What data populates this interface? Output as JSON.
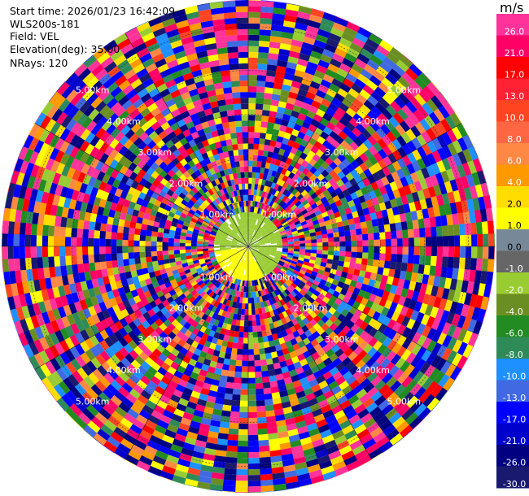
{
  "info": {
    "start_time": "Start time: 2026/01/23 16:42:09",
    "instrument": "WLS200s-181",
    "field": "Field: VEL",
    "elevation": "Elevation(deg): 35.00",
    "nrays": "NRays: 120"
  },
  "colorbar": {
    "unit": "m/s",
    "levels": [
      "26.0",
      "21.0",
      "17.0",
      "13.0",
      "10.0",
      "8.0",
      "6.0",
      "4.0",
      "2.0",
      "1.0",
      "0.0",
      "-1.0",
      "-2.0",
      "-4.0",
      "-6.0",
      "-8.0",
      "-10.0",
      "-13.0",
      "-17.0",
      "-21.0",
      "-26.0",
      "-30.0"
    ],
    "colors": [
      "#ff3399",
      "#ff0066",
      "#ff0000",
      "#ff2233",
      "#ff4422",
      "#ff6644",
      "#ff8844",
      "#ff9900",
      "#ffdd00",
      "#ffff00",
      "#778899",
      "#666666",
      "#99cc33",
      "#6b8e23",
      "#228b22",
      "#2e8b57",
      "#1e90ff",
      "#4169e1",
      "#0000ff",
      "#0000cd",
      "#000080",
      "#191970"
    ]
  },
  "chart_data": {
    "type": "ppi",
    "field": "VEL",
    "units": "m/s",
    "n_rays": 120,
    "range_rings_km": [
      1,
      2,
      3,
      4,
      5
    ],
    "range_ring_labels": [
      "1.00km",
      "2.00km",
      "3.00km",
      "4.00km",
      "5.00km"
    ],
    "max_range_km": 5.6,
    "near_field": {
      "max_range_km": 0.9,
      "colors": [
        "#99cc33",
        "#ffff00"
      ]
    },
    "noise_palette": [
      "#ff3399",
      "#ff0066",
      "#ff0000",
      "#ff4422",
      "#ff8844",
      "#ff9900",
      "#ffdd00",
      "#ffff00",
      "#99cc33",
      "#6b8e23",
      "#228b22",
      "#2e8b57",
      "#1e90ff",
      "#4169e1",
      "#0000ff",
      "#0000cd",
      "#000080",
      "#191970",
      "#ff3399",
      "#ff0066",
      "#0000ff",
      "#000080"
    ]
  }
}
